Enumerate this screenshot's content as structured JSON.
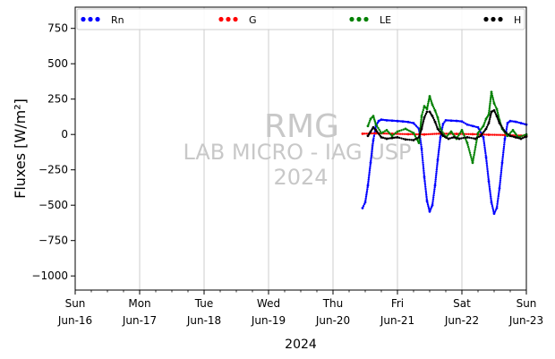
{
  "chart_data": {
    "type": "scatter",
    "ylabel": "Fluxes [W/m²]",
    "xlabel": "2024",
    "ylim": [
      -1100,
      900
    ],
    "y_ticks": [
      750,
      500,
      250,
      0,
      -250,
      -500,
      -750,
      -1000
    ],
    "xlim": [
      "2024-06-16",
      "2024-06-23"
    ],
    "x_ticks": [
      {
        "date": "2024-06-16",
        "line1": "Sun",
        "line2": "Jun-16"
      },
      {
        "date": "2024-06-17",
        "line1": "Mon",
        "line2": "Jun-17"
      },
      {
        "date": "2024-06-18",
        "line1": "Tue",
        "line2": "Jun-18"
      },
      {
        "date": "2024-06-19",
        "line1": "Wed",
        "line2": "Jun-19"
      },
      {
        "date": "2024-06-20",
        "line1": "Thu",
        "line2": "Jun-20"
      },
      {
        "date": "2024-06-21",
        "line1": "Fri",
        "line2": "Jun-21"
      },
      {
        "date": "2024-06-22",
        "line1": "Sat",
        "line2": "Jun-22"
      },
      {
        "date": "2024-06-23",
        "line1": "Sun",
        "line2": "Jun-23"
      }
    ],
    "grid": "vertical",
    "legend_position": "top",
    "watermark": [
      "RMG",
      "LAB MICRO - IAG USP",
      "2024"
    ],
    "series": [
      {
        "name": "Rn",
        "color": "#0000ff",
        "points": [
          [
            "2024-06-20T11:00",
            -520
          ],
          [
            "2024-06-20T12:00",
            -480
          ],
          [
            "2024-06-20T13:00",
            -360
          ],
          [
            "2024-06-20T14:00",
            -200
          ],
          [
            "2024-06-20T15:00",
            -40
          ],
          [
            "2024-06-20T16:00",
            60
          ],
          [
            "2024-06-20T17:00",
            95
          ],
          [
            "2024-06-20T18:00",
            105
          ],
          [
            "2024-06-20T20:00",
            100
          ],
          [
            "2024-06-20T22:00",
            98
          ],
          [
            "2024-06-21T00:00",
            95
          ],
          [
            "2024-06-21T02:00",
            92
          ],
          [
            "2024-06-21T04:00",
            88
          ],
          [
            "2024-06-21T06:00",
            80
          ],
          [
            "2024-06-21T08:00",
            40
          ],
          [
            "2024-06-21T09:00",
            -100
          ],
          [
            "2024-06-21T10:00",
            -300
          ],
          [
            "2024-06-21T11:00",
            -470
          ],
          [
            "2024-06-21T12:00",
            -545
          ],
          [
            "2024-06-21T13:00",
            -500
          ],
          [
            "2024-06-21T14:00",
            -360
          ],
          [
            "2024-06-21T15:00",
            -180
          ],
          [
            "2024-06-21T16:00",
            -20
          ],
          [
            "2024-06-21T17:00",
            75
          ],
          [
            "2024-06-21T18:00",
            100
          ],
          [
            "2024-06-21T20:00",
            98
          ],
          [
            "2024-06-21T22:00",
            96
          ],
          [
            "2024-06-22T00:00",
            92
          ],
          [
            "2024-06-22T02:00",
            70
          ],
          [
            "2024-06-22T04:00",
            60
          ],
          [
            "2024-06-22T06:00",
            50
          ],
          [
            "2024-06-22T08:00",
            -20
          ],
          [
            "2024-06-22T09:00",
            -160
          ],
          [
            "2024-06-22T10:00",
            -330
          ],
          [
            "2024-06-22T11:00",
            -480
          ],
          [
            "2024-06-22T12:00",
            -560
          ],
          [
            "2024-06-22T13:00",
            -520
          ],
          [
            "2024-06-22T14:00",
            -380
          ],
          [
            "2024-06-22T15:00",
            -200
          ],
          [
            "2024-06-22T16:00",
            -30
          ],
          [
            "2024-06-22T17:00",
            80
          ],
          [
            "2024-06-22T18:00",
            95
          ],
          [
            "2024-06-22T20:00",
            90
          ],
          [
            "2024-06-22T22:00",
            80
          ],
          [
            "2024-06-23T00:00",
            70
          ]
        ]
      },
      {
        "name": "G",
        "color": "#ff0000",
        "points": [
          [
            "2024-06-20T11:00",
            5
          ],
          [
            "2024-06-20T16:00",
            8
          ],
          [
            "2024-06-20T22:00",
            5
          ],
          [
            "2024-06-21T04:00",
            2
          ],
          [
            "2024-06-21T10:00",
            0
          ],
          [
            "2024-06-21T16:00",
            6
          ],
          [
            "2024-06-21T22:00",
            4
          ],
          [
            "2024-06-22T04:00",
            2
          ],
          [
            "2024-06-22T10:00",
            -2
          ],
          [
            "2024-06-22T16:00",
            -4
          ],
          [
            "2024-06-22T22:00",
            -8
          ],
          [
            "2024-06-23T00:00",
            -10
          ]
        ]
      },
      {
        "name": "LE",
        "color": "#008000",
        "points": [
          [
            "2024-06-20T13:00",
            60
          ],
          [
            "2024-06-20T14:00",
            110
          ],
          [
            "2024-06-20T15:00",
            130
          ],
          [
            "2024-06-20T16:00",
            70
          ],
          [
            "2024-06-20T18:00",
            10
          ],
          [
            "2024-06-20T20:00",
            30
          ],
          [
            "2024-06-20T22:00",
            -10
          ],
          [
            "2024-06-21T00:00",
            20
          ],
          [
            "2024-06-21T03:00",
            40
          ],
          [
            "2024-06-21T06:00",
            10
          ],
          [
            "2024-06-21T08:00",
            -60
          ],
          [
            "2024-06-21T09:00",
            130
          ],
          [
            "2024-06-21T10:00",
            200
          ],
          [
            "2024-06-21T11:00",
            180
          ],
          [
            "2024-06-21T12:00",
            270
          ],
          [
            "2024-06-21T13:00",
            210
          ],
          [
            "2024-06-21T14:00",
            170
          ],
          [
            "2024-06-21T15:00",
            120
          ],
          [
            "2024-06-21T16:00",
            40
          ],
          [
            "2024-06-21T18:00",
            -20
          ],
          [
            "2024-06-21T20:00",
            20
          ],
          [
            "2024-06-21T22:00",
            -30
          ],
          [
            "2024-06-22T00:00",
            30
          ],
          [
            "2024-06-22T02:00",
            -60
          ],
          [
            "2024-06-22T04:00",
            -200
          ],
          [
            "2024-06-22T06:00",
            10
          ],
          [
            "2024-06-22T08:00",
            60
          ],
          [
            "2024-06-22T09:00",
            110
          ],
          [
            "2024-06-22T10:00",
            140
          ],
          [
            "2024-06-22T11:00",
            300
          ],
          [
            "2024-06-22T12:00",
            220
          ],
          [
            "2024-06-22T13:00",
            180
          ],
          [
            "2024-06-22T14:00",
            100
          ],
          [
            "2024-06-22T15:00",
            40
          ],
          [
            "2024-06-22T17:00",
            -10
          ],
          [
            "2024-06-22T19:00",
            30
          ],
          [
            "2024-06-22T21:00",
            -20
          ],
          [
            "2024-06-23T00:00",
            0
          ]
        ]
      },
      {
        "name": "H",
        "color": "#000000",
        "points": [
          [
            "2024-06-20T13:00",
            -10
          ],
          [
            "2024-06-20T14:00",
            20
          ],
          [
            "2024-06-20T15:00",
            50
          ],
          [
            "2024-06-20T16:00",
            30
          ],
          [
            "2024-06-20T18:00",
            -20
          ],
          [
            "2024-06-20T20:00",
            -30
          ],
          [
            "2024-06-20T22:00",
            -25
          ],
          [
            "2024-06-21T00:00",
            -20
          ],
          [
            "2024-06-21T03:00",
            -35
          ],
          [
            "2024-06-21T06:00",
            -40
          ],
          [
            "2024-06-21T08:00",
            -20
          ],
          [
            "2024-06-21T09:00",
            40
          ],
          [
            "2024-06-21T10:00",
            120
          ],
          [
            "2024-06-21T11:00",
            160
          ],
          [
            "2024-06-21T12:00",
            160
          ],
          [
            "2024-06-21T13:00",
            130
          ],
          [
            "2024-06-21T14:00",
            90
          ],
          [
            "2024-06-21T15:00",
            40
          ],
          [
            "2024-06-21T17:00",
            -10
          ],
          [
            "2024-06-21T19:00",
            -30
          ],
          [
            "2024-06-21T21:00",
            -20
          ],
          [
            "2024-06-21T23:00",
            -30
          ],
          [
            "2024-06-22T02:00",
            -20
          ],
          [
            "2024-06-22T05:00",
            -30
          ],
          [
            "2024-06-22T07:00",
            -10
          ],
          [
            "2024-06-22T09:00",
            40
          ],
          [
            "2024-06-22T10:00",
            80
          ],
          [
            "2024-06-22T11:00",
            160
          ],
          [
            "2024-06-22T12:00",
            170
          ],
          [
            "2024-06-22T13:00",
            130
          ],
          [
            "2024-06-22T14:00",
            80
          ],
          [
            "2024-06-22T16:00",
            20
          ],
          [
            "2024-06-22T18:00",
            -10
          ],
          [
            "2024-06-22T20:00",
            -20
          ],
          [
            "2024-06-22T22:00",
            -30
          ],
          [
            "2024-06-23T00:00",
            -15
          ]
        ]
      }
    ]
  }
}
